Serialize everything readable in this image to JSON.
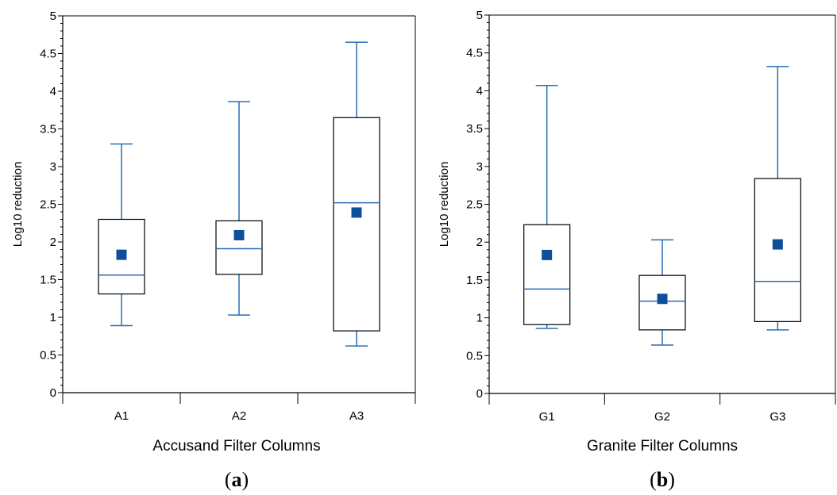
{
  "chart_data": [
    {
      "type": "box",
      "panel_label": "a",
      "xlabel": "Accusand Filter Columns",
      "ylabel": "Log10 reduction",
      "ylim": [
        0,
        5
      ],
      "yticks": [
        "0",
        "0.5",
        "1",
        "1.5",
        "2",
        "2.5",
        "3",
        "3.5",
        "4",
        "4.5",
        "5"
      ],
      "categories": [
        "A1",
        "A2",
        "A3"
      ],
      "boxes": [
        {
          "category": "A1",
          "min": 0.89,
          "q1": 1.31,
          "median": 1.56,
          "q3": 2.3,
          "max": 3.3,
          "mean": 1.83
        },
        {
          "category": "A2",
          "min": 1.03,
          "q1": 1.57,
          "median": 1.91,
          "q3": 2.28,
          "max": 3.86,
          "mean": 2.09
        },
        {
          "category": "A3",
          "min": 0.62,
          "q1": 0.82,
          "median": 2.52,
          "q3": 3.65,
          "max": 4.65,
          "mean": 2.39
        }
      ]
    },
    {
      "type": "box",
      "panel_label": "b",
      "xlabel": "Granite Filter Columns",
      "ylabel": "Log10 reduction",
      "ylim": [
        0,
        5
      ],
      "yticks": [
        "0",
        "0.5",
        "1",
        "1.5",
        "2",
        "2.5",
        "3",
        "3.5",
        "4",
        "4.5",
        "5"
      ],
      "categories": [
        "G1",
        "G2",
        "G3"
      ],
      "boxes": [
        {
          "category": "G1",
          "min": 0.86,
          "q1": 0.91,
          "median": 1.38,
          "q3": 2.23,
          "max": 4.07,
          "mean": 1.83
        },
        {
          "category": "G2",
          "min": 0.64,
          "q1": 0.84,
          "median": 1.22,
          "q3": 1.56,
          "max": 2.03,
          "mean": 1.25
        },
        {
          "category": "G3",
          "min": 0.84,
          "q1": 0.95,
          "median": 1.48,
          "q3": 2.84,
          "max": 4.32,
          "mean": 1.97
        }
      ]
    }
  ],
  "colors": {
    "whisker": "#2a6db2",
    "mean_marker": "#0d4f9c",
    "box_outline": "#000000",
    "axis": "#000000"
  }
}
